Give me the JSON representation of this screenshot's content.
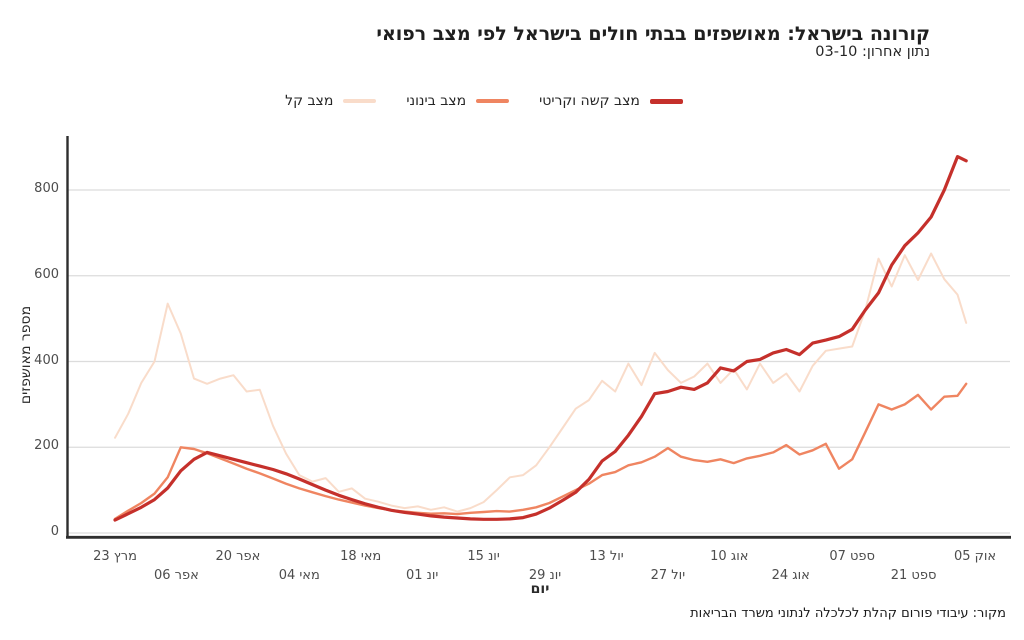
{
  "header": {
    "title": "קורונה בישראל: מאושפזים בבתי חולים בישראל לפי מצב רפואי",
    "subtitle": "נתון אחרון: 03-10"
  },
  "legend": [
    {
      "key": "severe-critical",
      "label": "מצב קשה וקריטי",
      "color": "#c5302b",
      "swatch_height": 5
    },
    {
      "key": "moderate",
      "label": "מצב בינוני",
      "color": "#ef8561",
      "swatch_height": 4
    },
    {
      "key": "mild",
      "label": "מצב קל",
      "color": "#f9dcca",
      "swatch_height": 4
    }
  ],
  "source": "מקור: עיבודי פורום קהלת לכלכלה לנתוני משרד הבריאות",
  "colors": {
    "severe_critical": "#c5302b",
    "moderate": "#ef8561",
    "mild": "#f9dcca",
    "gridline": "#dcdcdc",
    "axis": "#2e2e2e",
    "tick_text": "#4d4d4d"
  },
  "chart_data": {
    "type": "line",
    "title": "קורונה בישראל: מאושפזים בבתי חולים בישראל לפי מצב רפואי",
    "xlabel": "יום",
    "ylabel": "מספר מאושפזים",
    "grid": "horizontal",
    "legend_position": "top-center",
    "yticks": [
      0,
      200,
      400,
      600,
      800
    ],
    "ylim": [
      0,
      900
    ],
    "x_unit": "ימים מאז 23 מרץ 2020",
    "xlim_days": [
      0,
      196
    ],
    "x_ticks": {
      "labels": [
        "מרץ 23",
        "אפר 06",
        "אפר 20",
        "מאי 04",
        "מאי 18",
        "יונ 01",
        "יונ 15",
        "יונ 29",
        "יול 13",
        "יול 27",
        "אוג 10",
        "אוג 24",
        "ספט 07",
        "ספט 21",
        "אוק 05"
      ],
      "days": [
        0,
        14,
        28,
        42,
        56,
        70,
        84,
        98,
        112,
        126,
        140,
        154,
        168,
        182,
        196
      ]
    },
    "days": [
      0,
      3,
      6,
      9,
      12,
      15,
      18,
      21,
      24,
      27,
      30,
      33,
      36,
      39,
      42,
      45,
      48,
      51,
      54,
      57,
      60,
      63,
      66,
      69,
      72,
      75,
      78,
      81,
      84,
      87,
      90,
      93,
      96,
      99,
      102,
      105,
      108,
      111,
      114,
      117,
      120,
      123,
      126,
      129,
      132,
      135,
      138,
      141,
      144,
      147,
      150,
      153,
      156,
      159,
      162,
      165,
      168,
      171,
      174,
      177,
      180,
      183,
      186,
      189,
      192,
      194
    ],
    "series": [
      {
        "key": "severe-critical",
        "name": "מצב קשה וקריטי",
        "color": "#c5302b",
        "width": 3.2,
        "values": [
          30,
          45,
          60,
          78,
          105,
          145,
          172,
          188,
          180,
          172,
          164,
          156,
          148,
          138,
          126,
          113,
          100,
          88,
          78,
          68,
          60,
          53,
          48,
          44,
          40,
          37,
          35,
          33,
          32,
          32,
          33,
          36,
          44,
          58,
          76,
          95,
          125,
          168,
          190,
          228,
          272,
          325,
          330,
          340,
          335,
          350,
          385,
          378,
          400,
          405,
          420,
          428,
          416,
          443,
          450,
          458,
          475,
          520,
          560,
          625,
          670,
          700,
          737,
          800,
          878,
          868
        ]
      },
      {
        "key": "moderate",
        "name": "מצב בינוני",
        "color": "#ef8561",
        "width": 2.4,
        "values": [
          33,
          52,
          70,
          92,
          130,
          200,
          196,
          186,
          174,
          162,
          150,
          139,
          127,
          115,
          104,
          95,
          86,
          78,
          71,
          64,
          58,
          53,
          50,
          47,
          45,
          46,
          44,
          47,
          49,
          51,
          50,
          54,
          60,
          70,
          85,
          100,
          115,
          135,
          142,
          158,
          165,
          178,
          198,
          178,
          170,
          166,
          172,
          163,
          174,
          180,
          188,
          205,
          183,
          193,
          208,
          150,
          172,
          235,
          300,
          288,
          300,
          322,
          288,
          318,
          320,
          348
        ]
      },
      {
        "key": "mild",
        "name": "מצב קל",
        "color": "#f9dcca",
        "width": 2,
        "values": [
          222,
          278,
          350,
          400,
          535,
          465,
          360,
          348,
          360,
          368,
          330,
          334,
          250,
          185,
          135,
          120,
          128,
          96,
          104,
          80,
          73,
          64,
          58,
          62,
          54,
          60,
          50,
          58,
          72,
          100,
          130,
          135,
          158,
          200,
          245,
          290,
          310,
          355,
          330,
          395,
          345,
          420,
          380,
          350,
          365,
          395,
          350,
          382,
          335,
          395,
          350,
          372,
          330,
          390,
          425,
          430,
          435,
          520,
          640,
          575,
          648,
          590,
          652,
          592,
          556,
          490
        ]
      }
    ]
  }
}
